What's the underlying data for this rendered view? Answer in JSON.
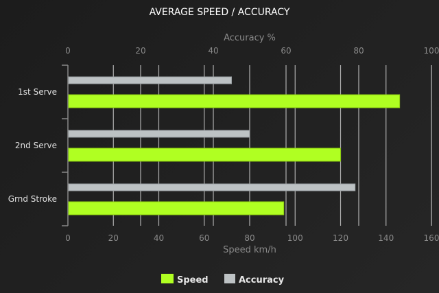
{
  "chart_data": {
    "type": "bar",
    "orientation": "horizontal",
    "title": "AVERAGE SPEED / ACCURACY",
    "categories": [
      "1st Serve",
      "2nd Serve",
      "Grnd Stroke"
    ],
    "series": [
      {
        "name": "Speed",
        "values": [
          146,
          120,
          95
        ],
        "color": "#b0ff22",
        "axis": "bottom"
      },
      {
        "name": "Accuracy",
        "values": [
          45,
          50,
          79
        ],
        "color": "#bdc2c4",
        "axis": "top"
      }
    ],
    "xlabel_bottom": "Speed km/h",
    "xlim_bottom": [
      0,
      160
    ],
    "xticks_bottom": [
      "0",
      "20",
      "40",
      "60",
      "80",
      "100",
      "120",
      "140",
      "160"
    ],
    "xlabel_top": "Accuracy %",
    "xlim_top": [
      0,
      100
    ],
    "xticks_top": [
      "0",
      "20",
      "40",
      "60",
      "80",
      "100"
    ],
    "grid": true,
    "legend_placement": "bottom"
  }
}
